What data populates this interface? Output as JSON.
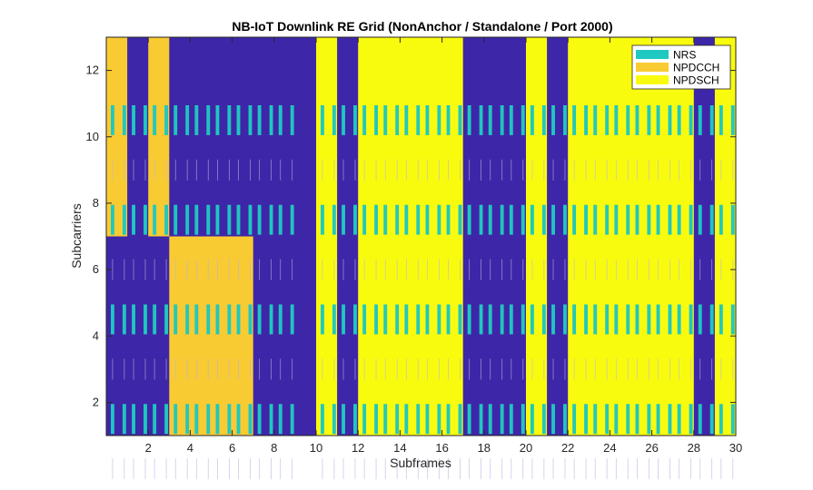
{
  "chart_data": {
    "type": "heatmap",
    "title": "NB-IoT Downlink RE Grid (NonAnchor / Standalone / Port 2000)",
    "xlabel": "Subframes",
    "ylabel": "Subcarriers",
    "xlim": [
      0,
      30
    ],
    "ylim": [
      1,
      13
    ],
    "xticks": [
      2,
      4,
      6,
      8,
      10,
      12,
      14,
      16,
      18,
      20,
      22,
      24,
      26,
      28,
      30
    ],
    "yticks": [
      2,
      4,
      6,
      8,
      10,
      12
    ],
    "grid": false,
    "legend_position": "top-right",
    "colors": {
      "background": "#3E26A8",
      "NRS": "#1FC8C0",
      "NPDCCH": "#F9CB32",
      "NPDSCH": "#F9FB0E",
      "nrs_trace": "#B8B4DF"
    },
    "legend": [
      {
        "name": "NRS",
        "color": "#1FC8C0"
      },
      {
        "name": "NPDCCH",
        "color": "#F9CB32"
      },
      {
        "name": "NPDSCH",
        "color": "#F9FB0E"
      }
    ],
    "channel_blocks": [
      {
        "channel": "NPDCCH",
        "subframes": [
          0,
          1
        ],
        "subcarriers": [
          7,
          13
        ]
      },
      {
        "channel": "NPDCCH",
        "subframes": [
          2,
          3
        ],
        "subcarriers": [
          7,
          13
        ]
      },
      {
        "channel": "NPDCCH",
        "subframes": [
          3,
          7
        ],
        "subcarriers": [
          1,
          7
        ]
      },
      {
        "channel": "NPDSCH",
        "subframes": [
          10,
          11
        ],
        "subcarriers": [
          1,
          13
        ]
      },
      {
        "channel": "NPDSCH",
        "subframes": [
          12,
          17
        ],
        "subcarriers": [
          1,
          13
        ]
      },
      {
        "channel": "NPDSCH",
        "subframes": [
          20,
          21
        ],
        "subcarriers": [
          1,
          13
        ]
      },
      {
        "channel": "NPDSCH",
        "subframes": [
          22,
          28
        ],
        "subcarriers": [
          1,
          13
        ]
      },
      {
        "channel": "NPDSCH",
        "subframes": [
          29,
          30
        ],
        "subcarriers": [
          1,
          13
        ]
      }
    ],
    "nrs_rows": [
      1.5,
      4.5,
      7.5,
      10.5
    ],
    "nrs_subframes_excluded": [
      9
    ]
  }
}
